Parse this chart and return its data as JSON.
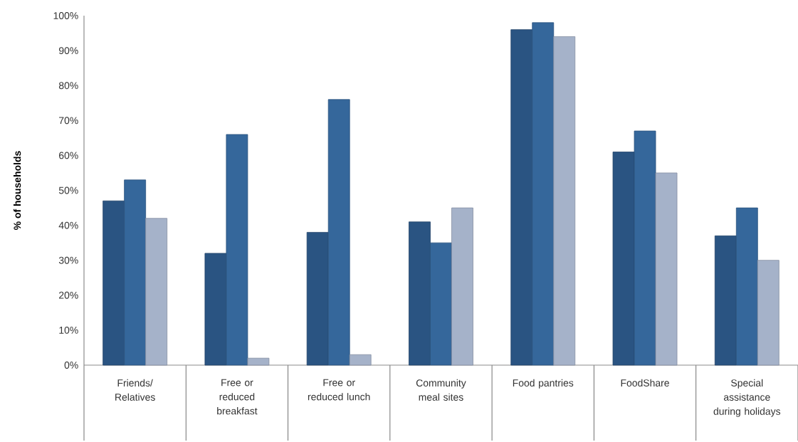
{
  "chart_data": {
    "type": "bar",
    "ylabel": "% of households",
    "categories": [
      "Friends/ Relatives",
      "Free or reduced breakfast",
      "Free or reduced lunch",
      "Community meal sites",
      "Food pantries",
      "FoodShare",
      "Special assistance during holidays"
    ],
    "series": [
      {
        "color": "#2a5482",
        "values": [
          47,
          32,
          38,
          41,
          96,
          61,
          37
        ]
      },
      {
        "color": "#35679b",
        "values": [
          53,
          66,
          76,
          35,
          98,
          67,
          45
        ]
      },
      {
        "color": "#a5b2c9",
        "values": [
          42,
          2,
          3,
          45,
          94,
          55,
          30
        ]
      }
    ],
    "ylim": [
      0,
      100
    ],
    "yticks": [
      {
        "value": 0,
        "label": "0%"
      },
      {
        "value": 10,
        "label": "10%"
      },
      {
        "value": 20,
        "label": "20%"
      },
      {
        "value": 30,
        "label": "30%"
      },
      {
        "value": 40,
        "label": "40%"
      },
      {
        "value": 50,
        "label": "50%"
      },
      {
        "value": 60,
        "label": "60%"
      },
      {
        "value": 70,
        "label": "70%"
      },
      {
        "value": 80,
        "label": "80%"
      },
      {
        "value": 90,
        "label": "90%"
      },
      {
        "value": 100,
        "label": "100%"
      }
    ]
  }
}
